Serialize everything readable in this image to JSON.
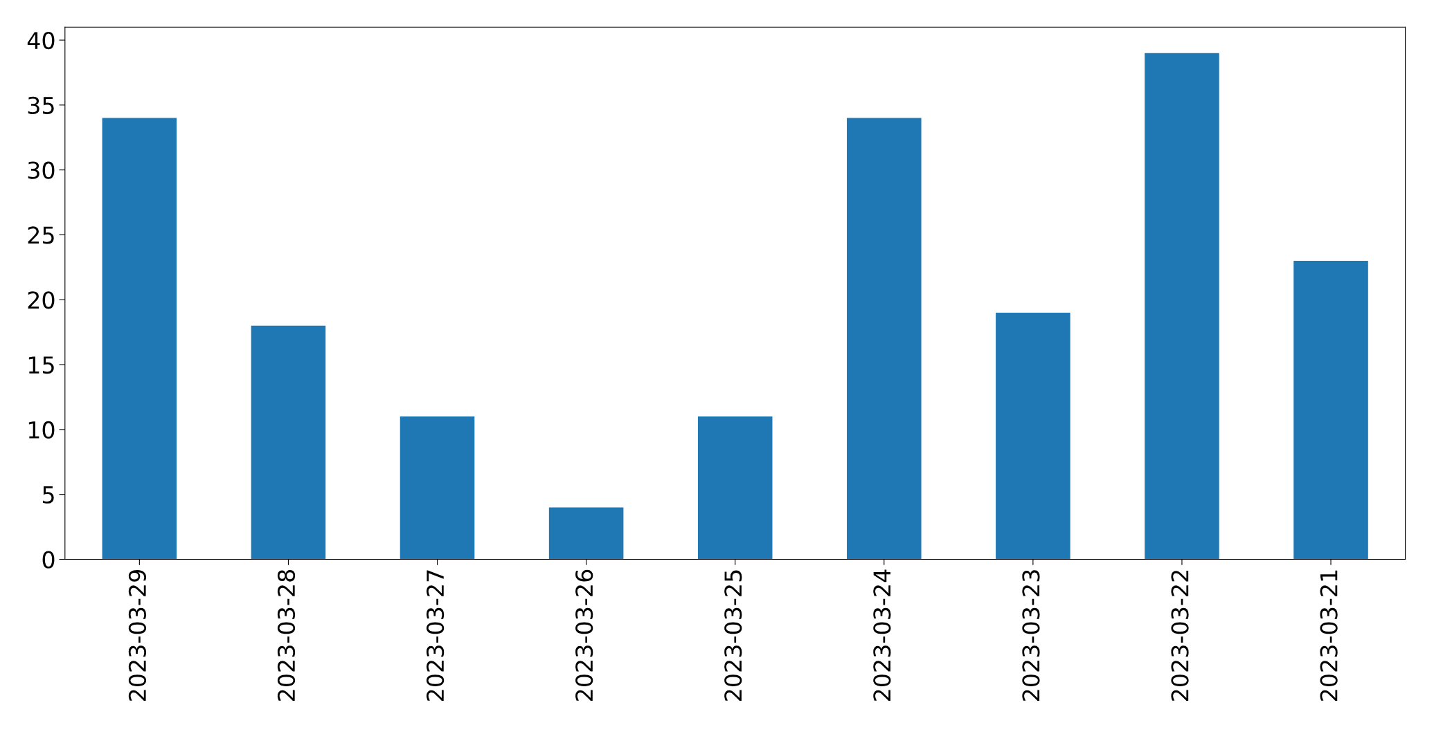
{
  "chart_data": {
    "type": "bar",
    "categories": [
      "2023-03-29",
      "2023-03-28",
      "2023-03-27",
      "2023-03-26",
      "2023-03-25",
      "2023-03-24",
      "2023-03-23",
      "2023-03-22",
      "2023-03-21"
    ],
    "values": [
      34,
      18,
      11,
      4,
      11,
      34,
      19,
      39,
      23
    ],
    "color": "#1f77b4",
    "ylim": [
      0,
      41
    ],
    "yticks": [
      0,
      5,
      10,
      15,
      20,
      25,
      30,
      35,
      40
    ],
    "grid": false
  }
}
